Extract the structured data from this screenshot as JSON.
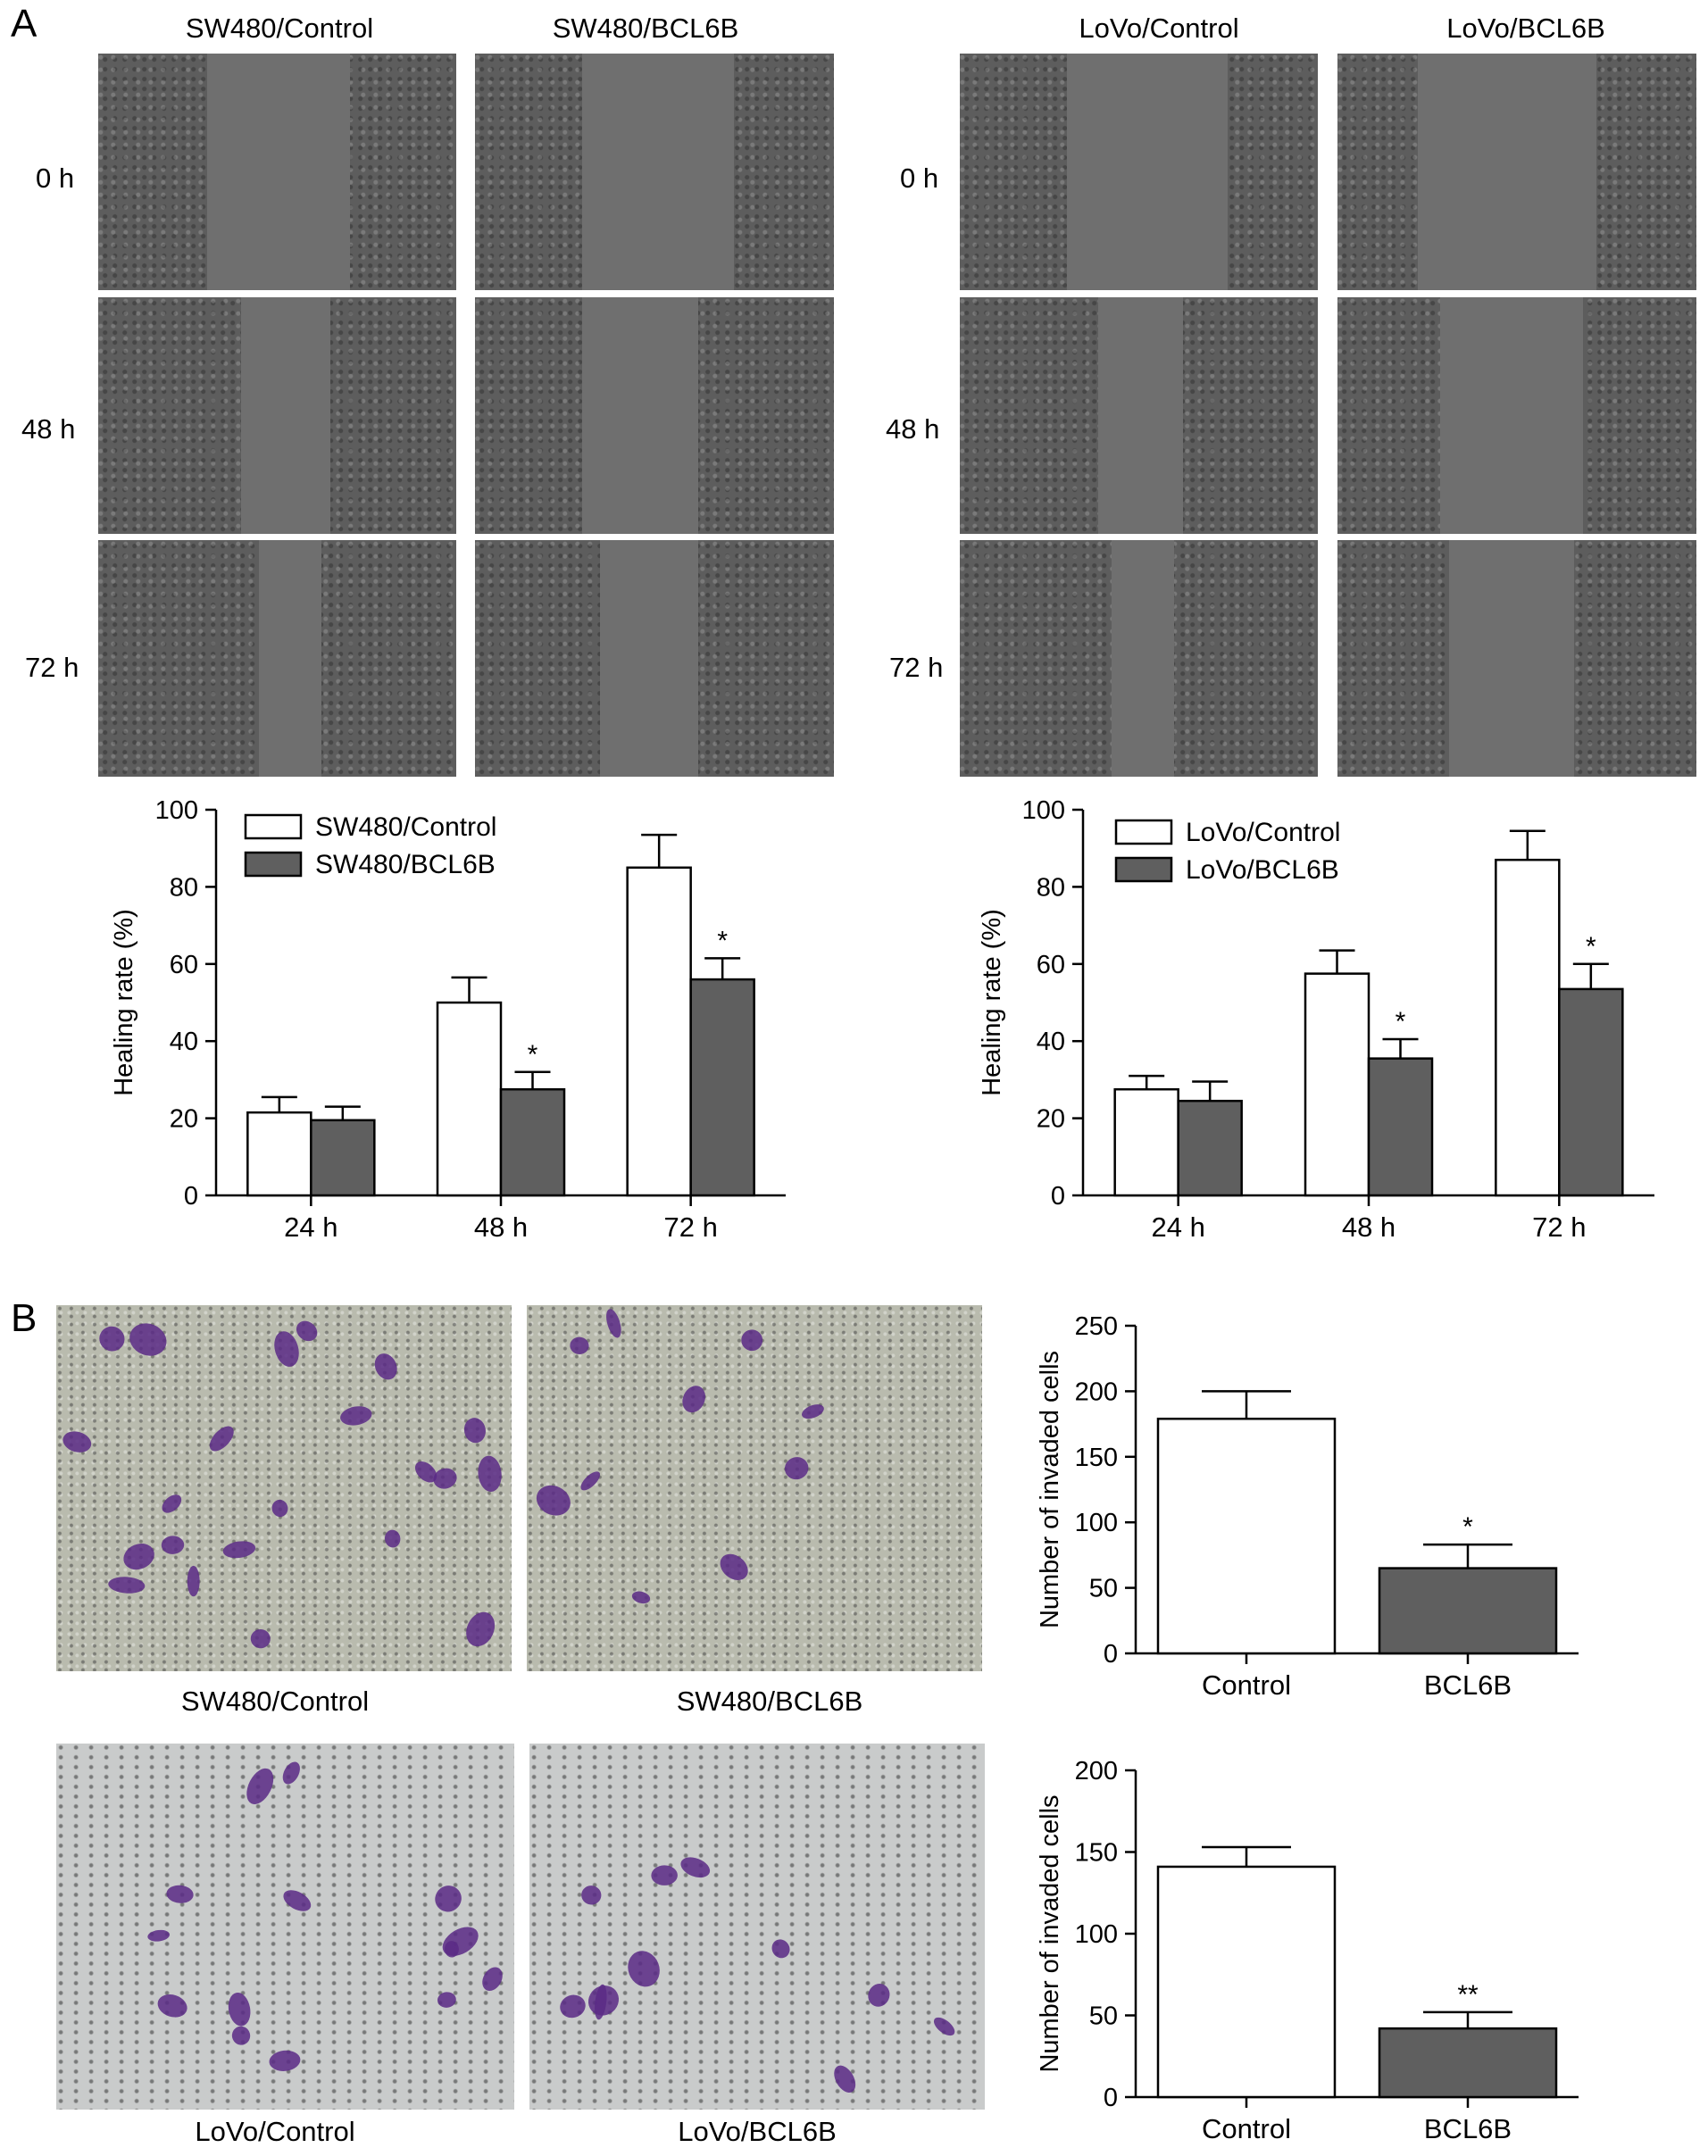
{
  "panels": {
    "a": "A",
    "b": "B"
  },
  "wound": {
    "sw480_cols": [
      "SW480/Control",
      "SW480/BCL6B"
    ],
    "lovo_cols": [
      "LoVo/Control",
      "LoVo/BCL6B"
    ],
    "rows": [
      "0 h",
      "48 h",
      "72 h"
    ]
  },
  "transwell": {
    "sw480_labels": [
      "SW480/Control",
      "SW480/BCL6B"
    ],
    "lovo_labels": [
      "LoVo/Control",
      "LoVo/BCL6B"
    ]
  },
  "colors": {
    "control_fill": "#ffffff",
    "bcl6b_fill": "#5f5f5f",
    "stroke": "#000000",
    "stain": "#5b2a86"
  },
  "chart_data": [
    {
      "id": "sw480-healing",
      "type": "bar",
      "categories": [
        "24 h",
        "48 h",
        "72 h"
      ],
      "series": [
        {
          "name": "SW480/Control",
          "values": [
            21.5,
            50.0,
            85.0
          ],
          "errors": [
            4.0,
            6.5,
            8.5
          ],
          "color": "#ffffff"
        },
        {
          "name": "SW480/BCL6B",
          "values": [
            19.5,
            27.5,
            56.0
          ],
          "errors": [
            3.5,
            4.5,
            5.5
          ],
          "color": "#5f5f5f",
          "annotations": [
            "",
            "*",
            "*"
          ]
        }
      ],
      "ylabel": "Healing rate (%)",
      "ylim": [
        0,
        100
      ],
      "yticks": [
        0,
        20,
        40,
        60,
        80,
        100
      ],
      "legend": "top-left"
    },
    {
      "id": "lovo-healing",
      "type": "bar",
      "categories": [
        "24 h",
        "48 h",
        "72 h"
      ],
      "series": [
        {
          "name": "LoVo/Control",
          "values": [
            27.5,
            57.5,
            87.0
          ],
          "errors": [
            3.5,
            6.0,
            7.5
          ],
          "color": "#ffffff"
        },
        {
          "name": "LoVo/BCL6B",
          "values": [
            24.5,
            35.5,
            53.5
          ],
          "errors": [
            5.0,
            5.0,
            6.5
          ],
          "color": "#5f5f5f",
          "annotations": [
            "",
            "*",
            "*"
          ]
        }
      ],
      "ylabel": "Healing rate (%)",
      "ylim": [
        0,
        100
      ],
      "yticks": [
        0,
        20,
        40,
        60,
        80,
        100
      ],
      "legend": "top-left"
    },
    {
      "id": "sw480-invasion",
      "type": "bar",
      "categories": [
        "Control",
        "BCL6B"
      ],
      "values": [
        179,
        65
      ],
      "errors": [
        21,
        18
      ],
      "colors": [
        "#ffffff",
        "#5f5f5f"
      ],
      "annotations": [
        "",
        "*"
      ],
      "ylabel": "Number of invaded cells",
      "ylim": [
        0,
        250
      ],
      "yticks": [
        0,
        50,
        100,
        150,
        200,
        250
      ]
    },
    {
      "id": "lovo-invasion",
      "type": "bar",
      "categories": [
        "Control",
        "BCL6B"
      ],
      "values": [
        141,
        42
      ],
      "errors": [
        12,
        10
      ],
      "colors": [
        "#ffffff",
        "#5f5f5f"
      ],
      "annotations": [
        "",
        "**"
      ],
      "ylabel": "Number of invaded cells",
      "ylim": [
        0,
        200
      ],
      "yticks": [
        0,
        50,
        100,
        150,
        200
      ]
    }
  ]
}
